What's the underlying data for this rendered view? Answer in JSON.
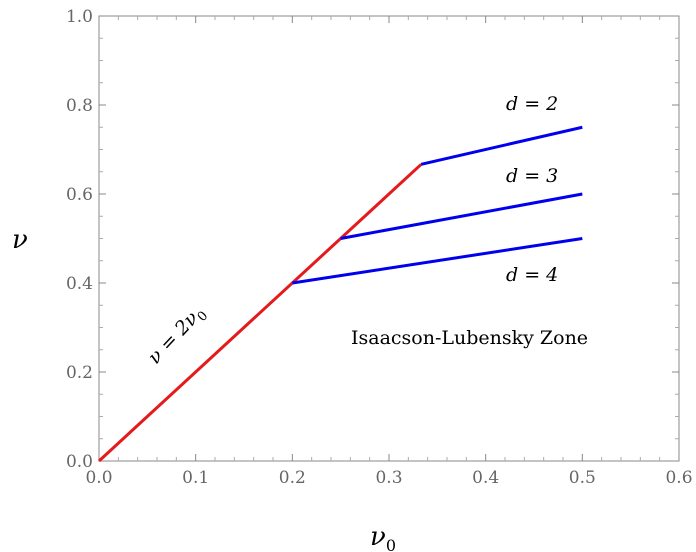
{
  "chart_data": {
    "type": "line",
    "xlabel": "ν",
    "xlabel_sub": "0",
    "ylabel": "ν",
    "xlim": [
      0.0,
      0.6
    ],
    "ylim": [
      0.0,
      1.0
    ],
    "x_ticks": [
      "0.0",
      "0.1",
      "0.2",
      "0.3",
      "0.4",
      "0.5",
      "0.6"
    ],
    "y_ticks": [
      "0.0",
      "0.2",
      "0.4",
      "0.6",
      "0.8",
      "1.0"
    ],
    "x_tick_values": [
      0.0,
      0.1,
      0.2,
      0.3,
      0.4,
      0.5,
      0.6
    ],
    "y_tick_values": [
      0.0,
      0.2,
      0.4,
      0.6,
      0.8,
      1.0
    ],
    "grid": false,
    "series": [
      {
        "color": "#e41a1c",
        "x": [
          0.0,
          0.3333
        ],
        "y": [
          0.0,
          0.6667
        ]
      },
      {
        "color": "#0000ee",
        "x": [
          0.3333,
          0.5
        ],
        "y": [
          0.6667,
          0.75
        ]
      },
      {
        "color": "#0000ee",
        "x": [
          0.25,
          0.5
        ],
        "y": [
          0.5,
          0.6
        ]
      },
      {
        "color": "#0000ee",
        "x": [
          0.2,
          0.5
        ],
        "y": [
          0.4,
          0.5
        ]
      }
    ],
    "annotations": {
      "red_line": "ν = 2ν",
      "red_line_sub": "0",
      "d2": "d = 2",
      "d3": "d = 3",
      "d4": "d = 4",
      "zone": "Isaacson-Lubensky Zone"
    }
  }
}
